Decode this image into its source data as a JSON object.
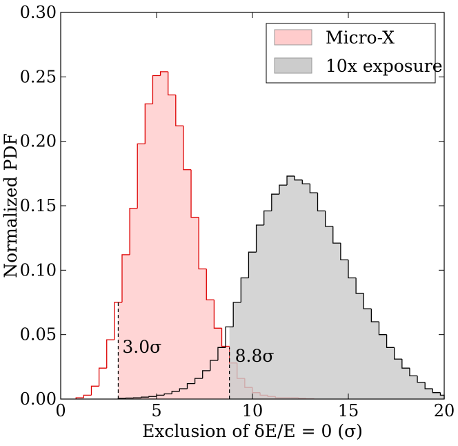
{
  "chart_data": {
    "type": "histogram",
    "title": "",
    "xlabel": "Exclusion of δE/E = 0 (σ)",
    "ylabel": "Normalized PDF",
    "xlim": [
      0,
      20
    ],
    "ylim": [
      0,
      0.3
    ],
    "x_ticks": [
      0,
      5,
      10,
      15,
      20
    ],
    "x_tick_labels": [
      "0",
      "5",
      "10",
      "15",
      "20"
    ],
    "y_ticks": [
      0,
      0.05,
      0.1,
      0.15,
      0.2,
      0.25,
      0.3
    ],
    "y_tick_labels": [
      "0.00",
      "0.05",
      "0.10",
      "0.15",
      "0.20",
      "0.25",
      "0.30"
    ],
    "grid": false,
    "legend_position": "top-right",
    "series": [
      {
        "name": "Micro-X",
        "fill_color": "#ffcccc",
        "edge_color": "#dd0000",
        "fill_start": 3.0,
        "edges": [
          0.8,
          1.2,
          1.6,
          2.0,
          2.4,
          2.8,
          3.2,
          3.6,
          4.0,
          4.4,
          4.8,
          5.2,
          5.6,
          6.0,
          6.4,
          6.8,
          7.2,
          7.6,
          8.0,
          8.4,
          8.8,
          9.2,
          9.6,
          10.0,
          10.4,
          10.8,
          11.2,
          11.6,
          12.0,
          12.4,
          12.8,
          13.2
        ],
        "values": [
          0.001,
          0.003,
          0.01,
          0.024,
          0.046,
          0.075,
          0.112,
          0.148,
          0.198,
          0.229,
          0.251,
          0.254,
          0.236,
          0.212,
          0.178,
          0.141,
          0.101,
          0.077,
          0.055,
          0.041,
          0.028,
          0.016,
          0.009,
          0.005,
          0.003,
          0.002,
          0.001,
          0.001,
          0.001,
          0.0005,
          0.0002
        ]
      },
      {
        "name": "10x exposure",
        "fill_color": "#cccccc",
        "edge_color": "#000000",
        "fill_start": 8.8,
        "edges": [
          3.0,
          3.4,
          3.8,
          4.2,
          4.6,
          5.0,
          5.4,
          5.8,
          6.2,
          6.6,
          7.0,
          7.4,
          7.8,
          8.2,
          8.6,
          9.0,
          9.4,
          9.8,
          10.2,
          10.6,
          11.0,
          11.4,
          11.8,
          12.2,
          12.6,
          13.0,
          13.4,
          13.8,
          14.2,
          14.6,
          15.0,
          15.4,
          15.8,
          16.2,
          16.6,
          17.0,
          17.4,
          17.8,
          18.2,
          18.6,
          19.0,
          19.4,
          19.8,
          20.0
        ],
        "values": [
          0.0005,
          0.0008,
          0.001,
          0.0015,
          0.002,
          0.003,
          0.004,
          0.006,
          0.008,
          0.012,
          0.016,
          0.022,
          0.03,
          0.04,
          0.056,
          0.075,
          0.094,
          0.114,
          0.135,
          0.146,
          0.159,
          0.166,
          0.173,
          0.17,
          0.167,
          0.16,
          0.146,
          0.134,
          0.121,
          0.108,
          0.094,
          0.082,
          0.07,
          0.06,
          0.05,
          0.04,
          0.031,
          0.024,
          0.018,
          0.013,
          0.008,
          0.005,
          0.003
        ]
      }
    ],
    "annotations": [
      {
        "text": "3.0σ",
        "x": 3.0,
        "line_top": 0.075,
        "color": "#000000"
      },
      {
        "text": "8.8σ",
        "x": 8.8,
        "line_top": 0.04,
        "color": "#000000"
      }
    ]
  }
}
